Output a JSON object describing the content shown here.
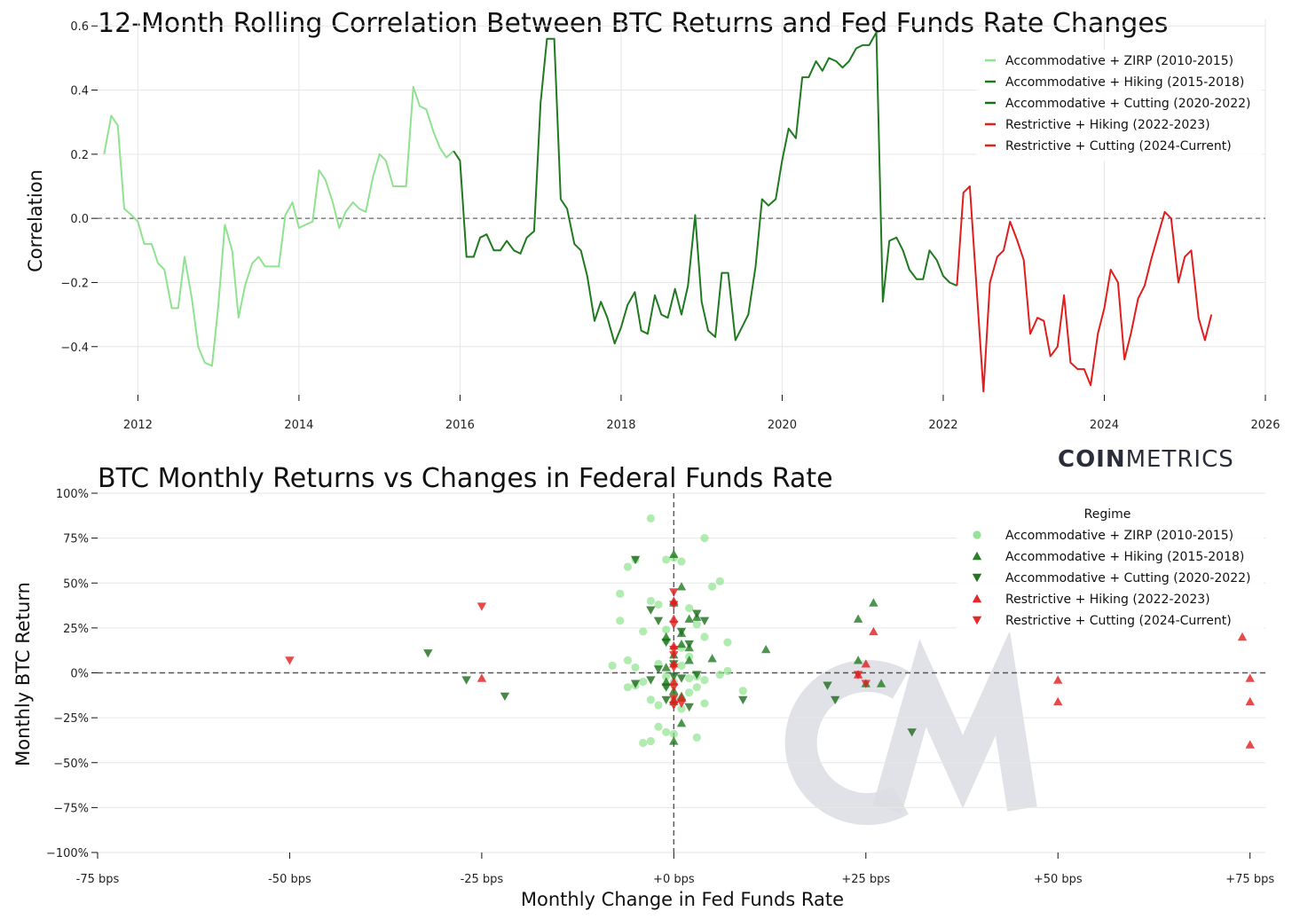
{
  "brand": {
    "bold": "COIN",
    "light": "METRICS",
    "watermark": "CM"
  },
  "colors": {
    "zirp": "#8fe28f",
    "hiking_accom": "#1f7a1f",
    "cutting_accom": "#1a6b1a",
    "restrictive_hiking": "#e11d1d",
    "restrictive_cutting": "#e11d1d",
    "grid": "#e6e6e6"
  },
  "chart_data": [
    {
      "type": "line",
      "title": "12-Month Rolling Correlation Between BTC Returns and Fed Funds Rate Changes",
      "xlabel": "",
      "ylabel": "Correlation",
      "xlim": [
        2011.5,
        2026.0
      ],
      "ylim": [
        -0.55,
        0.62
      ],
      "xticks": [
        2012,
        2014,
        2016,
        2018,
        2020,
        2022,
        2024,
        2026
      ],
      "xtick_labels": [
        "2012",
        "2014",
        "2016",
        "2018",
        "2020",
        "2022",
        "2024",
        "2026"
      ],
      "yticks": [
        -0.4,
        -0.2,
        0.0,
        0.2,
        0.4,
        0.6
      ],
      "ytick_labels": [
        "−0.4",
        "−0.2",
        "0.0",
        "0.2",
        "0.4",
        "0.6"
      ],
      "grid": true,
      "reference_line_y": 0,
      "legend_position": "top-right",
      "series": [
        {
          "name": "Accommodative + ZIRP (2010-2015)",
          "color_key": "zirp",
          "x": [
            2011.58,
            2011.67,
            2011.75,
            2011.83,
            2011.92,
            2012.0,
            2012.08,
            2012.17,
            2012.25,
            2012.33,
            2012.42,
            2012.5,
            2012.58,
            2012.67,
            2012.75,
            2012.83,
            2012.92,
            2013.0,
            2013.08,
            2013.17,
            2013.25,
            2013.33,
            2013.42,
            2013.5,
            2013.58,
            2013.67,
            2013.75,
            2013.83,
            2013.92,
            2014.0,
            2014.08,
            2014.17,
            2014.25,
            2014.33,
            2014.42,
            2014.5,
            2014.58,
            2014.67,
            2014.75,
            2014.83,
            2014.92,
            2015.0,
            2015.08,
            2015.17,
            2015.25,
            2015.33,
            2015.42,
            2015.5,
            2015.58,
            2015.67,
            2015.75,
            2015.83,
            2015.92
          ],
          "y": [
            0.2,
            0.32,
            0.29,
            0.03,
            0.01,
            -0.01,
            -0.08,
            -0.08,
            -0.14,
            -0.16,
            -0.28,
            -0.28,
            -0.12,
            -0.25,
            -0.4,
            -0.45,
            -0.46,
            -0.27,
            -0.02,
            -0.1,
            -0.31,
            -0.21,
            -0.14,
            -0.12,
            -0.15,
            -0.15,
            -0.15,
            0.01,
            0.05,
            -0.03,
            -0.02,
            -0.01,
            0.15,
            0.12,
            0.05,
            -0.03,
            0.02,
            0.05,
            0.03,
            0.02,
            0.13,
            0.2,
            0.18,
            0.1,
            0.1,
            0.1,
            0.41,
            0.35,
            0.34,
            0.27,
            0.22,
            0.19,
            0.21
          ]
        },
        {
          "name": "Accommodative + Hiking (2015-2018)",
          "color_key": "hiking_accom",
          "x": [
            2015.92,
            2016.0,
            2016.08,
            2016.17,
            2016.25,
            2016.33,
            2016.42,
            2016.5,
            2016.58,
            2016.67,
            2016.75,
            2016.83,
            2016.92,
            2017.0,
            2017.08,
            2017.17,
            2017.25,
            2017.33,
            2017.42,
            2017.5,
            2017.58,
            2017.67,
            2017.75,
            2017.83,
            2017.92,
            2018.0,
            2018.08,
            2018.17,
            2018.25,
            2018.33,
            2018.42,
            2018.5,
            2018.58,
            2018.67,
            2018.75,
            2018.83,
            2018.92,
            2019.0,
            2019.08,
            2019.17,
            2019.25,
            2019.33,
            2019.42,
            2019.5,
            2019.58,
            2019.67,
            2019.75,
            2019.83,
            2019.92,
            2020.0,
            2020.08,
            2020.17,
            2020.25,
            2020.33,
            2020.42,
            2020.5,
            2020.58,
            2020.67,
            2020.75,
            2020.83,
            2020.92,
            2021.0,
            2021.08,
            2021.17,
            2021.25,
            2021.33,
            2021.42,
            2021.5,
            2021.58,
            2021.67,
            2021.75,
            2021.83,
            2021.92,
            2022.0,
            2022.08,
            2022.17
          ],
          "y": [
            0.21,
            0.18,
            -0.12,
            -0.12,
            -0.06,
            -0.05,
            -0.1,
            -0.1,
            -0.07,
            -0.1,
            -0.11,
            -0.06,
            -0.04,
            0.36,
            0.56,
            0.56,
            0.06,
            0.03,
            -0.08,
            -0.1,
            -0.18,
            -0.32,
            -0.26,
            -0.31,
            -0.39,
            -0.34,
            -0.27,
            -0.23,
            -0.35,
            -0.36,
            -0.24,
            -0.3,
            -0.31,
            -0.22,
            -0.3,
            -0.21,
            0.01,
            -0.26,
            -0.35,
            -0.37,
            -0.17,
            -0.17,
            -0.38,
            -0.34,
            -0.3,
            -0.15,
            0.06,
            0.04,
            0.06,
            0.18,
            0.28,
            0.25,
            0.44,
            0.44,
            0.49,
            0.46,
            0.5,
            0.49,
            0.47,
            0.49,
            0.53,
            0.54,
            0.54,
            0.58,
            -0.26,
            -0.07,
            -0.06,
            -0.1,
            -0.16,
            -0.19,
            -0.19,
            -0.1,
            -0.13,
            -0.18,
            -0.2,
            -0.21
          ]
        },
        {
          "name": "Accommodative + Cutting (2020-2022)",
          "color_key": "cutting_accom",
          "x": [],
          "y": []
        },
        {
          "name": "Restrictive + Hiking (2022-2023)",
          "color_key": "restrictive_hiking",
          "x": [
            2022.17,
            2022.25,
            2022.33,
            2022.42,
            2022.5,
            2022.58,
            2022.67,
            2022.75,
            2022.83,
            2022.92,
            2023.0,
            2023.08,
            2023.17,
            2023.25,
            2023.33,
            2023.42,
            2023.5,
            2023.58,
            2023.67,
            2023.75,
            2023.83,
            2023.92,
            2024.0,
            2024.08,
            2024.17,
            2024.25,
            2024.33,
            2024.42,
            2024.5,
            2024.58,
            2024.67,
            2024.75,
            2024.83,
            2024.92,
            2025.0,
            2025.08,
            2025.17,
            2025.25,
            2025.33
          ],
          "y": [
            -0.21,
            0.08,
            0.1,
            -0.24,
            -0.54,
            -0.2,
            -0.12,
            -0.1,
            -0.01,
            -0.07,
            -0.13,
            -0.36,
            -0.31,
            -0.32,
            -0.43,
            -0.4,
            -0.24,
            -0.45,
            -0.47,
            -0.47,
            -0.52,
            -0.36,
            -0.28,
            -0.16,
            -0.2,
            -0.44,
            -0.36,
            -0.25,
            -0.21,
            -0.13,
            -0.05,
            0.02,
            0.0,
            -0.2,
            -0.12,
            -0.1,
            -0.31,
            -0.38,
            -0.3
          ]
        },
        {
          "name": "Restrictive + Cutting (2024-Current)",
          "color_key": "restrictive_cutting",
          "x": [],
          "y": []
        }
      ]
    },
    {
      "type": "scatter",
      "title": "BTC Monthly Returns vs Changes in Federal Funds Rate",
      "xlabel": "Monthly Change in Fed Funds Rate",
      "ylabel": "Monthly BTC Return",
      "xlim": [
        -75,
        77
      ],
      "ylim": [
        -100,
        100
      ],
      "xticks": [
        -75,
        -50,
        -25,
        0,
        25,
        50,
        75
      ],
      "xtick_labels": [
        "-75 bps",
        "-50 bps",
        "-25 bps",
        "+0 bps",
        "+25 bps",
        "+50 bps",
        "+75 bps"
      ],
      "yticks": [
        -100,
        -75,
        -50,
        -25,
        0,
        25,
        50,
        75,
        100
      ],
      "ytick_labels": [
        "−100%",
        "−75%",
        "−50%",
        "−25%",
        "0%",
        "25%",
        "50%",
        "75%",
        "100%"
      ],
      "grid": true,
      "reference_line_x": 0,
      "reference_line_y": 0,
      "legend_title": "Regime",
      "legend_position": "top-right",
      "series": [
        {
          "name": "Accommodative + ZIRP (2010-2015)",
          "color_key": "zirp",
          "marker": "circle",
          "points": [
            [
              -3,
              86
            ],
            [
              -6,
              59
            ],
            [
              -5,
              63
            ],
            [
              -1,
              63
            ],
            [
              0,
              64
            ],
            [
              1,
              62
            ],
            [
              -7,
              44
            ],
            [
              -3,
              40
            ],
            [
              -2,
              38
            ],
            [
              2,
              36
            ],
            [
              -7,
              29
            ],
            [
              -4,
              23
            ],
            [
              -1,
              24
            ],
            [
              3,
              27
            ],
            [
              4,
              20
            ],
            [
              5,
              48
            ],
            [
              6,
              51
            ],
            [
              7,
              17
            ],
            [
              -6,
              7
            ],
            [
              -5,
              3
            ],
            [
              -2,
              5
            ],
            [
              1,
              4
            ],
            [
              2,
              9
            ],
            [
              3,
              -2
            ],
            [
              -8,
              4
            ],
            [
              -6,
              -8
            ],
            [
              -5,
              -7
            ],
            [
              -4,
              -5
            ],
            [
              -1,
              -7
            ],
            [
              2,
              -11
            ],
            [
              3,
              -8
            ],
            [
              4,
              -17
            ],
            [
              -3,
              -15
            ],
            [
              -2,
              -18
            ],
            [
              0,
              -14
            ],
            [
              1,
              -20
            ],
            [
              -2,
              -30
            ],
            [
              -1,
              -33
            ],
            [
              0,
              -34
            ],
            [
              -3,
              -38
            ],
            [
              -4,
              -39
            ],
            [
              3,
              -36
            ],
            [
              9,
              -10
            ],
            [
              4,
              75
            ],
            [
              6,
              -1
            ],
            [
              7,
              1
            ],
            [
              -1,
              -2
            ],
            [
              0,
              -5
            ],
            [
              2,
              -3
            ],
            [
              1,
              14
            ],
            [
              -1,
              18
            ],
            [
              4,
              -4
            ]
          ]
        },
        {
          "name": "Accommodative + Hiking (2015-2018)",
          "color_key": "hiking_accom",
          "marker": "triangle-up",
          "points": [
            [
              0,
              66
            ],
            [
              1,
              48
            ],
            [
              0,
              39
            ],
            [
              -1,
              20
            ],
            [
              1,
              16
            ],
            [
              2,
              14
            ],
            [
              3,
              31
            ],
            [
              2,
              7
            ],
            [
              5,
              8
            ],
            [
              -1,
              -5
            ],
            [
              0,
              -10
            ],
            [
              1,
              -13
            ],
            [
              0,
              -16
            ],
            [
              1,
              -28
            ],
            [
              0,
              -38
            ],
            [
              12,
              13
            ],
            [
              -1,
              3
            ],
            [
              24,
              30
            ],
            [
              25,
              -6
            ],
            [
              26,
              39
            ],
            [
              27,
              -6
            ],
            [
              24,
              7
            ],
            [
              0,
              10
            ],
            [
              1,
              22
            ],
            [
              2,
              30
            ]
          ]
        },
        {
          "name": "Accommodative + Cutting (2020-2022)",
          "color_key": "cutting_accom",
          "marker": "triangle-down",
          "points": [
            [
              -5,
              63
            ],
            [
              -3,
              35
            ],
            [
              -2,
              29
            ],
            [
              -1,
              17
            ],
            [
              0,
              -2
            ],
            [
              1,
              23
            ],
            [
              2,
              16
            ],
            [
              3,
              33
            ],
            [
              4,
              29
            ],
            [
              -3,
              -4
            ],
            [
              -1,
              -15
            ],
            [
              1,
              -3
            ],
            [
              3,
              -1
            ],
            [
              -1,
              -8
            ],
            [
              -32,
              11
            ],
            [
              -27,
              -4
            ],
            [
              -22,
              -13
            ],
            [
              -5,
              -6
            ],
            [
              9,
              -15
            ],
            [
              20,
              -7
            ],
            [
              21,
              -15
            ],
            [
              31,
              -33
            ],
            [
              -2,
              2
            ],
            [
              0,
              5
            ],
            [
              2,
              -19
            ]
          ]
        },
        {
          "name": "Restrictive + Hiking (2022-2023)",
          "color_key": "restrictive_hiking",
          "marker": "triangle-up",
          "points": [
            [
              -25,
              -3
            ],
            [
              25,
              5
            ],
            [
              26,
              23
            ],
            [
              24,
              -1
            ],
            [
              50,
              -4
            ],
            [
              50,
              -16
            ],
            [
              75,
              -3
            ],
            [
              75,
              -16
            ],
            [
              75,
              -40
            ],
            [
              74,
              20
            ],
            [
              0,
              40
            ],
            [
              0,
              30
            ],
            [
              0,
              15
            ],
            [
              0,
              5
            ],
            [
              0,
              -5
            ],
            [
              0,
              -15
            ],
            [
              1,
              -14
            ]
          ]
        },
        {
          "name": "Restrictive + Cutting (2024-Current)",
          "color_key": "restrictive_cutting",
          "marker": "triangle-down",
          "points": [
            [
              -50,
              7
            ],
            [
              -25,
              37
            ],
            [
              24,
              -1
            ],
            [
              25,
              -6
            ],
            [
              0,
              45
            ],
            [
              0,
              38
            ],
            [
              0,
              27
            ],
            [
              0,
              13
            ],
            [
              0,
              10
            ],
            [
              0,
              3
            ],
            [
              0,
              -8
            ],
            [
              0,
              -14
            ],
            [
              1,
              -17
            ],
            [
              0,
              -18
            ]
          ]
        }
      ]
    }
  ]
}
